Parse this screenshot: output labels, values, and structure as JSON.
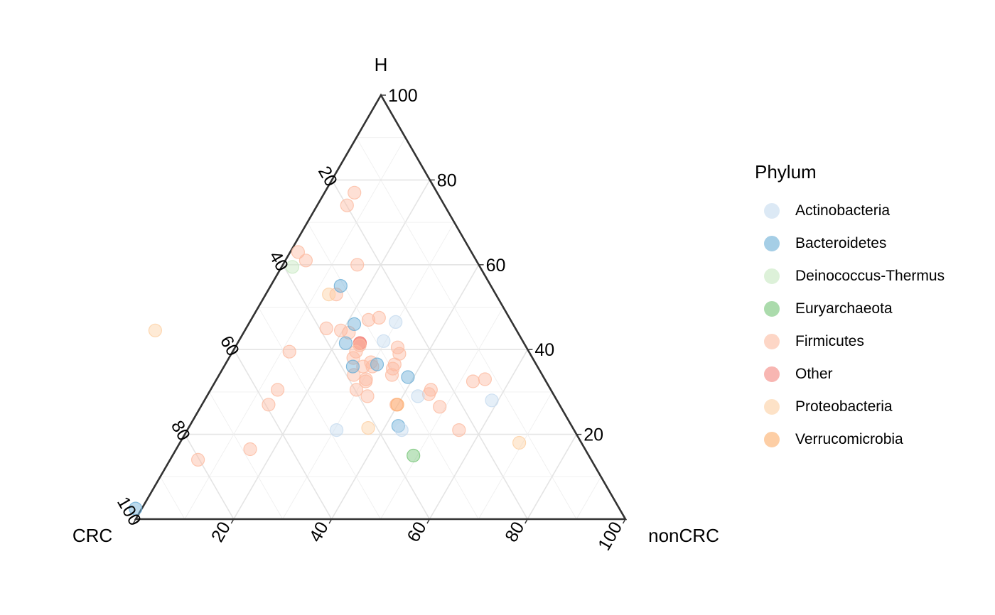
{
  "chart_data": {
    "type": "ternary-scatter",
    "axes": {
      "top": {
        "label": "H"
      },
      "left": {
        "label": "CRC"
      },
      "right": {
        "label": "nonCRC"
      }
    },
    "ticks": [
      "20",
      "40",
      "60",
      "80",
      "100"
    ],
    "tick_values": [
      20,
      40,
      60,
      80,
      100
    ],
    "grid": true,
    "legend": {
      "title": "Phylum",
      "position": "right",
      "entries": [
        {
          "name": "Actinobacteria",
          "color": "#c6dbef",
          "opacity": 0.45
        },
        {
          "name": "Bacteroidetes",
          "color": "#6baed6",
          "opacity": 0.45
        },
        {
          "name": "Deinococcus-Thermus",
          "color": "#c7e9c0",
          "opacity": 0.45
        },
        {
          "name": "Euryarchaeota",
          "color": "#74c476",
          "opacity": 0.45
        },
        {
          "name": "Firmicutes",
          "color": "#fcbba1",
          "opacity": 0.45
        },
        {
          "name": "Other",
          "color": "#f4877f",
          "opacity": 0.45
        },
        {
          "name": "Proteobacteria",
          "color": "#fdd0a2",
          "opacity": 0.45
        },
        {
          "name": "Verrucomicrobia",
          "color": "#fdae6b",
          "opacity": 0.45
        }
      ]
    },
    "points_note": "values are [CRC, H, nonCRC] in percent",
    "points": [
      {
        "phylum": "Other",
        "v": [
          33.5,
          41.5,
          25.0
        ]
      },
      {
        "phylum": "Other",
        "v": [
          33.5,
          41.5,
          25.0
        ]
      },
      {
        "phylum": "Other",
        "v": [
          33.5,
          41.5,
          25.0
        ]
      },
      {
        "phylum": "Firmicutes",
        "v": [
          16.9,
          77.0,
          6.1
        ]
      },
      {
        "phylum": "Firmicutes",
        "v": [
          19.9,
          74.0,
          6.1
        ]
      },
      {
        "phylum": "Firmicutes",
        "v": [
          35.4,
          63.0,
          1.6
        ]
      },
      {
        "phylum": "Firmicutes",
        "v": [
          34.8,
          61.0,
          4.2
        ]
      },
      {
        "phylum": "Firmicutes",
        "v": [
          24.8,
          60.0,
          15.2
        ]
      },
      {
        "phylum": "Firmicutes",
        "v": [
          32.6,
          53.0,
          14.4
        ]
      },
      {
        "phylum": "Firmicutes",
        "v": [
          26.6,
          47.5,
          25.9
        ]
      },
      {
        "phylum": "Firmicutes",
        "v": [
          29.0,
          47.0,
          24.0
        ]
      },
      {
        "phylum": "Firmicutes",
        "v": [
          38.6,
          45.0,
          16.4
        ]
      },
      {
        "phylum": "Firmicutes",
        "v": [
          35.9,
          44.5,
          19.6
        ]
      },
      {
        "phylum": "Firmicutes",
        "v": [
          34.5,
          44.0,
          21.5
        ]
      },
      {
        "phylum": "Firmicutes",
        "v": [
          33.8,
          41.0,
          25.2
        ]
      },
      {
        "phylum": "Firmicutes",
        "v": [
          26.3,
          40.5,
          33.2
        ]
      },
      {
        "phylum": "Firmicutes",
        "v": [
          48.9,
          39.5,
          11.6
        ]
      },
      {
        "phylum": "Firmicutes",
        "v": [
          35.3,
          39.5,
          25.2
        ]
      },
      {
        "phylum": "Firmicutes",
        "v": [
          26.7,
          39.0,
          34.3
        ]
      },
      {
        "phylum": "Firmicutes",
        "v": [
          36.6,
          38.0,
          25.4
        ]
      },
      {
        "phylum": "Firmicutes",
        "v": [
          33.5,
          37.0,
          29.5
        ]
      },
      {
        "phylum": "Firmicutes",
        "v": [
          28.9,
          36.5,
          34.6
        ]
      },
      {
        "phylum": "Firmicutes",
        "v": [
          35.6,
          36.0,
          28.4
        ]
      },
      {
        "phylum": "Firmicutes",
        "v": [
          33.7,
          36.0,
          30.3
        ]
      },
      {
        "phylum": "Firmicutes",
        "v": [
          29.8,
          35.5,
          34.7
        ]
      },
      {
        "phylum": "Firmicutes",
        "v": [
          38.5,
          34.0,
          27.5
        ]
      },
      {
        "phylum": "Firmicutes",
        "v": [
          30.7,
          34.0,
          35.3
        ]
      },
      {
        "phylum": "Firmicutes",
        "v": [
          36.5,
          33.0,
          30.5
        ]
      },
      {
        "phylum": "Firmicutes",
        "v": [
          36.8,
          32.5,
          30.7
        ]
      },
      {
        "phylum": "Firmicutes",
        "v": [
          14.9,
          32.5,
          52.6
        ]
      },
      {
        "phylum": "Firmicutes",
        "v": [
          12.2,
          33.0,
          54.8
        ]
      },
      {
        "phylum": "Firmicutes",
        "v": [
          55.8,
          30.5,
          13.7
        ]
      },
      {
        "phylum": "Firmicutes",
        "v": [
          39.7,
          30.5,
          29.8
        ]
      },
      {
        "phylum": "Firmicutes",
        "v": [
          24.5,
          30.5,
          45.0
        ]
      },
      {
        "phylum": "Firmicutes",
        "v": [
          25.4,
          29.5,
          45.1
        ]
      },
      {
        "phylum": "Firmicutes",
        "v": [
          38.2,
          29.0,
          32.8
        ]
      },
      {
        "phylum": "Firmicutes",
        "v": [
          59.4,
          27.0,
          13.6
        ]
      },
      {
        "phylum": "Firmicutes",
        "v": [
          33.3,
          27.0,
          39.7
        ]
      },
      {
        "phylum": "Firmicutes",
        "v": [
          24.7,
          26.5,
          48.8
        ]
      },
      {
        "phylum": "Firmicutes",
        "v": [
          23.5,
          21.0,
          55.5
        ]
      },
      {
        "phylum": "Firmicutes",
        "v": [
          68.4,
          16.5,
          15.1
        ]
      },
      {
        "phylum": "Firmicutes",
        "v": [
          80.3,
          14.0,
          5.7
        ]
      },
      {
        "phylum": "Bacteroidetes",
        "v": [
          30.7,
          55.0,
          14.3
        ]
      },
      {
        "phylum": "Bacteroidetes",
        "v": [
          32.4,
          46.0,
          21.6
        ]
      },
      {
        "phylum": "Bacteroidetes",
        "v": [
          36.4,
          41.5,
          22.1
        ]
      },
      {
        "phylum": "Bacteroidetes",
        "v": [
          37.7,
          36.0,
          26.3
        ]
      },
      {
        "phylum": "Bacteroidetes",
        "v": [
          32.5,
          36.5,
          31.0
        ]
      },
      {
        "phylum": "Bacteroidetes",
        "v": [
          27.7,
          33.5,
          38.8
        ]
      },
      {
        "phylum": "Bacteroidetes",
        "v": [
          35.4,
          22.0,
          42.6
        ]
      },
      {
        "phylum": "Bacteroidetes",
        "v": [
          98.8,
          2.5,
          -1.3
        ]
      },
      {
        "phylum": "Actinobacteria",
        "v": [
          23.7,
          46.5,
          29.8
        ]
      },
      {
        "phylum": "Actinobacteria",
        "v": [
          28.4,
          42.0,
          29.6
        ]
      },
      {
        "phylum": "Actinobacteria",
        "v": [
          27.9,
          29.0,
          43.1
        ]
      },
      {
        "phylum": "Actinobacteria",
        "v": [
          13.3,
          28.0,
          58.7
        ]
      },
      {
        "phylum": "Actinobacteria",
        "v": [
          48.5,
          21.0,
          30.5
        ]
      },
      {
        "phylum": "Actinobacteria",
        "v": [
          35.2,
          21.0,
          43.8
        ]
      },
      {
        "phylum": "Deinococcus-Thermus",
        "v": [
          38.3,
          59.5,
          2.2
        ]
      },
      {
        "phylum": "Euryarchaeota",
        "v": [
          35.8,
          15.0,
          49.2
        ]
      },
      {
        "phylum": "Proteobacteria",
        "v": [
          34.1,
          53.0,
          12.9
        ]
      },
      {
        "phylum": "Proteobacteria",
        "v": [
          73.8,
          44.5,
          -18.3
        ]
      },
      {
        "phylum": "Proteobacteria",
        "v": [
          41.8,
          21.5,
          36.7
        ]
      },
      {
        "phylum": "Proteobacteria",
        "v": [
          12.7,
          18.0,
          69.3
        ]
      },
      {
        "phylum": "Verrucomicrobia",
        "v": [
          33.1,
          27.0,
          39.9
        ]
      }
    ]
  }
}
